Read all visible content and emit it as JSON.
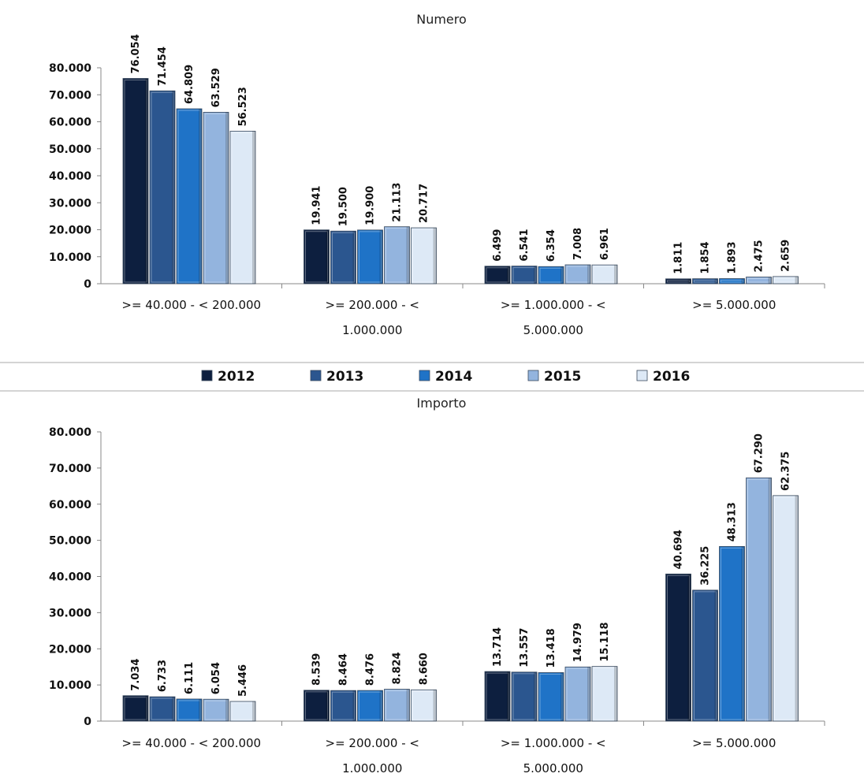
{
  "legend": {
    "items": [
      {
        "label": "2012",
        "color": "#0d1f3f"
      },
      {
        "label": "2013",
        "color": "#2b568f"
      },
      {
        "label": "2014",
        "color": "#1f73c7"
      },
      {
        "label": "2015",
        "color": "#93b4de"
      },
      {
        "label": "2016",
        "color": "#dde9f6"
      }
    ]
  },
  "chart_data": [
    {
      "type": "bar",
      "title": "Numero",
      "categories": [
        [
          ">= 40.000 - < 200.000"
        ],
        [
          ">= 200.000 - <",
          "1.000.000"
        ],
        [
          ">= 1.000.000 - <",
          "5.000.000"
        ],
        [
          ">= 5.000.000"
        ]
      ],
      "series": [
        {
          "name": "2012",
          "values": [
            76054,
            19941,
            6499,
            1811
          ],
          "labels": [
            "76.054",
            "19.941",
            "6.499",
            "1.811"
          ]
        },
        {
          "name": "2013",
          "values": [
            71454,
            19500,
            6541,
            1854
          ],
          "labels": [
            "71.454",
            "19.500",
            "6.541",
            "1.854"
          ]
        },
        {
          "name": "2014",
          "values": [
            64809,
            19900,
            6354,
            1893
          ],
          "labels": [
            "64.809",
            "19.900",
            "6.354",
            "1.893"
          ]
        },
        {
          "name": "2015",
          "values": [
            63529,
            21113,
            7008,
            2475
          ],
          "labels": [
            "63.529",
            "21.113",
            "7.008",
            "2.475"
          ]
        },
        {
          "name": "2016",
          "values": [
            56523,
            20717,
            6961,
            2659
          ],
          "labels": [
            "56.523",
            "20.717",
            "6.961",
            "2.659"
          ]
        }
      ],
      "ylim": [
        0,
        80000
      ],
      "yticks": [
        0,
        10000,
        20000,
        30000,
        40000,
        50000,
        60000,
        70000,
        80000
      ],
      "ytick_labels": [
        "0",
        "10.000",
        "20.000",
        "30.000",
        "40.000",
        "50.000",
        "60.000",
        "70.000",
        "80.000"
      ],
      "grid": false
    },
    {
      "type": "bar",
      "title": "Importo",
      "categories": [
        [
          ">= 40.000 - < 200.000"
        ],
        [
          ">= 200.000 - <",
          "1.000.000"
        ],
        [
          ">= 1.000.000 - <",
          "5.000.000"
        ],
        [
          ">= 5.000.000"
        ]
      ],
      "series": [
        {
          "name": "2012",
          "values": [
            7034,
            8539,
            13714,
            40694
          ],
          "labels": [
            "7.034",
            "8.539",
            "13.714",
            "40.694"
          ]
        },
        {
          "name": "2013",
          "values": [
            6733,
            8464,
            13557,
            36225
          ],
          "labels": [
            "6.733",
            "8.464",
            "13.557",
            "36.225"
          ]
        },
        {
          "name": "2014",
          "values": [
            6111,
            8476,
            13418,
            48313
          ],
          "labels": [
            "6.111",
            "8.476",
            "13.418",
            "48.313"
          ]
        },
        {
          "name": "2015",
          "values": [
            6054,
            8824,
            14979,
            67290
          ],
          "labels": [
            "6.054",
            "8.824",
            "14.979",
            "67.290"
          ]
        },
        {
          "name": "2016",
          "values": [
            5446,
            8660,
            15118,
            62375
          ],
          "labels": [
            "5.446",
            "8.660",
            "15.118",
            "62.375"
          ]
        }
      ],
      "ylim": [
        0,
        80000
      ],
      "yticks": [
        0,
        10000,
        20000,
        30000,
        40000,
        50000,
        60000,
        70000,
        80000
      ],
      "ytick_labels": [
        "0",
        "10.000",
        "20.000",
        "30.000",
        "40.000",
        "50.000",
        "60.000",
        "70.000",
        "80.000"
      ],
      "grid": false
    }
  ]
}
